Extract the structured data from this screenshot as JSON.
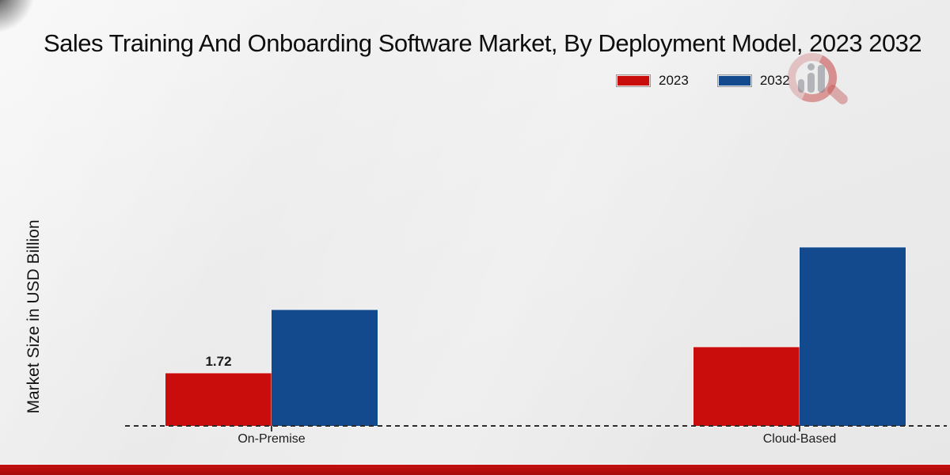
{
  "chart_data": {
    "type": "bar",
    "title": "Sales Training And Onboarding Software Market, By Deployment Model, 2023 2032",
    "ylabel": "Market Size in USD Billion",
    "xlabel": "",
    "categories": [
      "On-Premise",
      "Cloud-Based"
    ],
    "series": [
      {
        "name": "2023",
        "color": "#c90d0d",
        "values": [
          1.72,
          2.57
        ],
        "labels": [
          "1.72",
          ""
        ]
      },
      {
        "name": "2032",
        "color": "#124a8d",
        "values": [
          3.77,
          5.8
        ],
        "labels": [
          "",
          ""
        ]
      }
    ],
    "ylim": [
      0,
      6.5
    ],
    "grid": false,
    "legend_position": "top-right",
    "baseline_style": "dashed"
  },
  "branding": {
    "watermark_icon": "magnifier-bar-chart-logo",
    "accent_strip_color": "#b00c0c"
  }
}
